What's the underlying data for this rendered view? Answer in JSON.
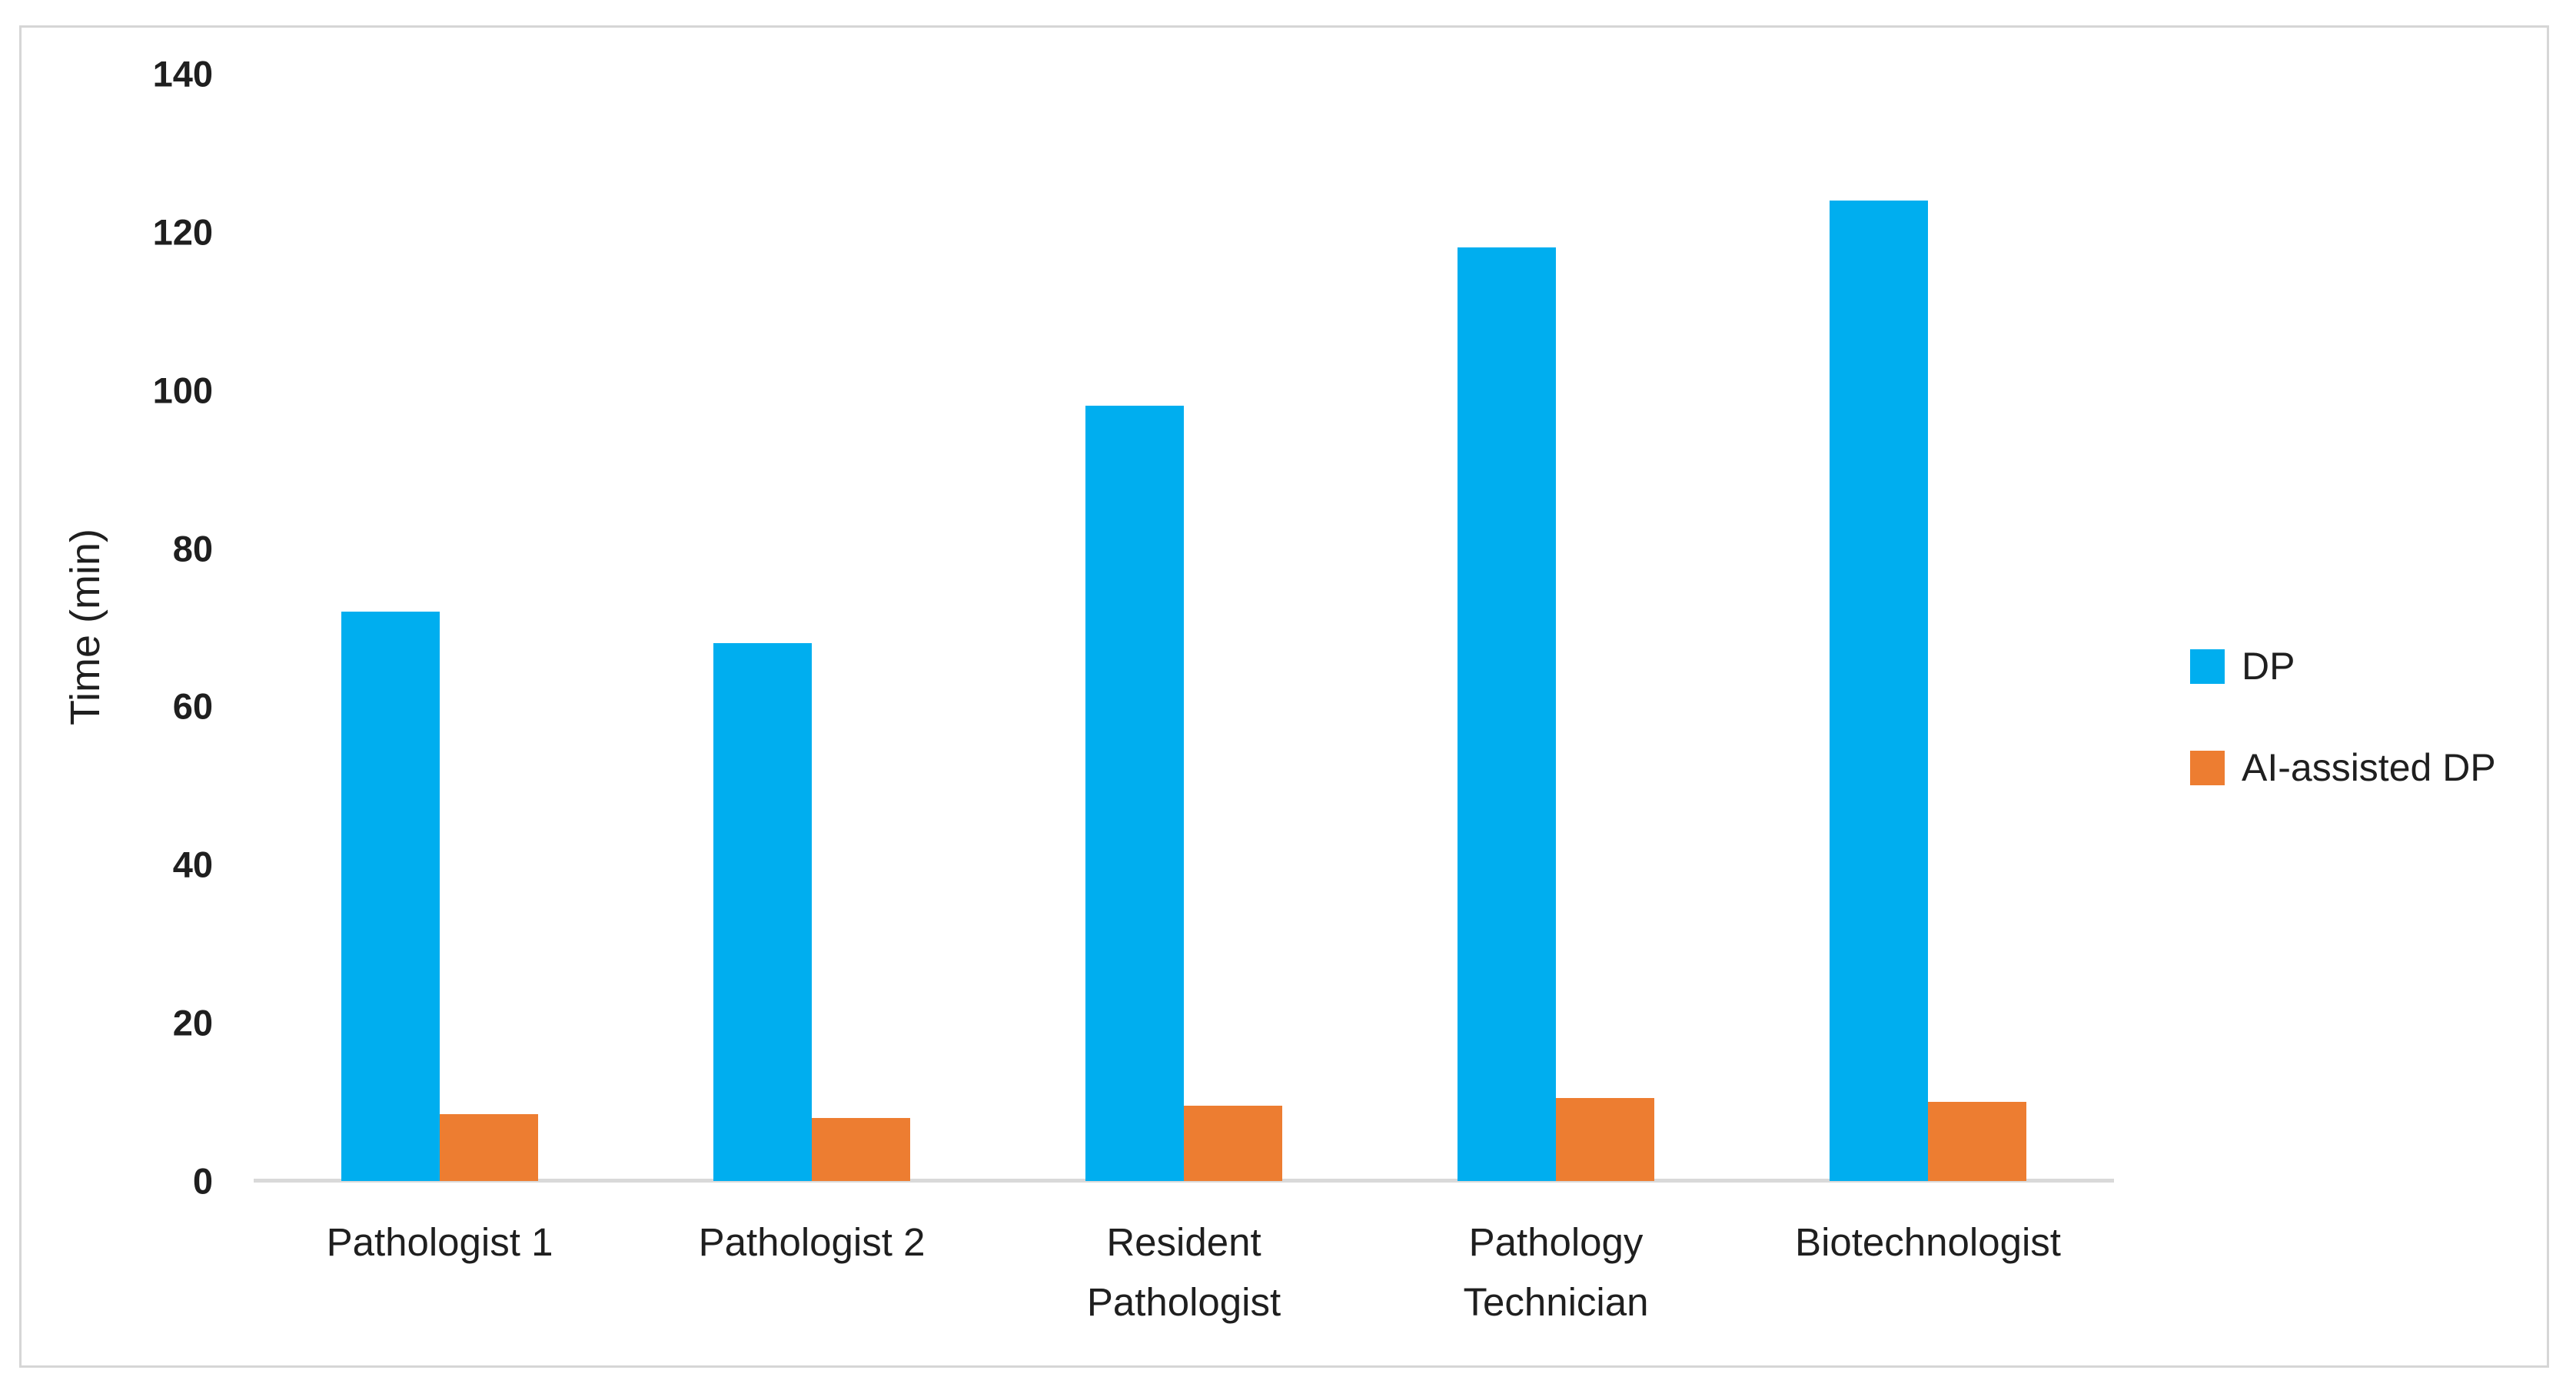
{
  "chart_data": {
    "type": "bar",
    "title": "",
    "categories": [
      "Pathologist 1",
      "Pathologist 2",
      "Resident\nPathologist",
      "Pathology\nTechnician",
      "Biotechnologist"
    ],
    "series": [
      {
        "name": "DP",
        "color": "#00AEEF",
        "values": [
          72,
          68,
          98,
          118,
          124
        ]
      },
      {
        "name": "AI-assisted DP",
        "color": "#ED7D31",
        "values": [
          8.5,
          8,
          9.5,
          10.5,
          10
        ]
      }
    ],
    "xlabel": "",
    "ylabel": "Time (min)",
    "ylim": [
      0,
      140
    ],
    "yticks": [
      0,
      20,
      40,
      60,
      80,
      100,
      120,
      140
    ],
    "grid": false,
    "legend_position": "right"
  },
  "colors": {
    "axis_line": "#d9d9d9",
    "frame_border": "#d6d6d6",
    "text": "#1f1f1f",
    "background": "#ffffff"
  }
}
